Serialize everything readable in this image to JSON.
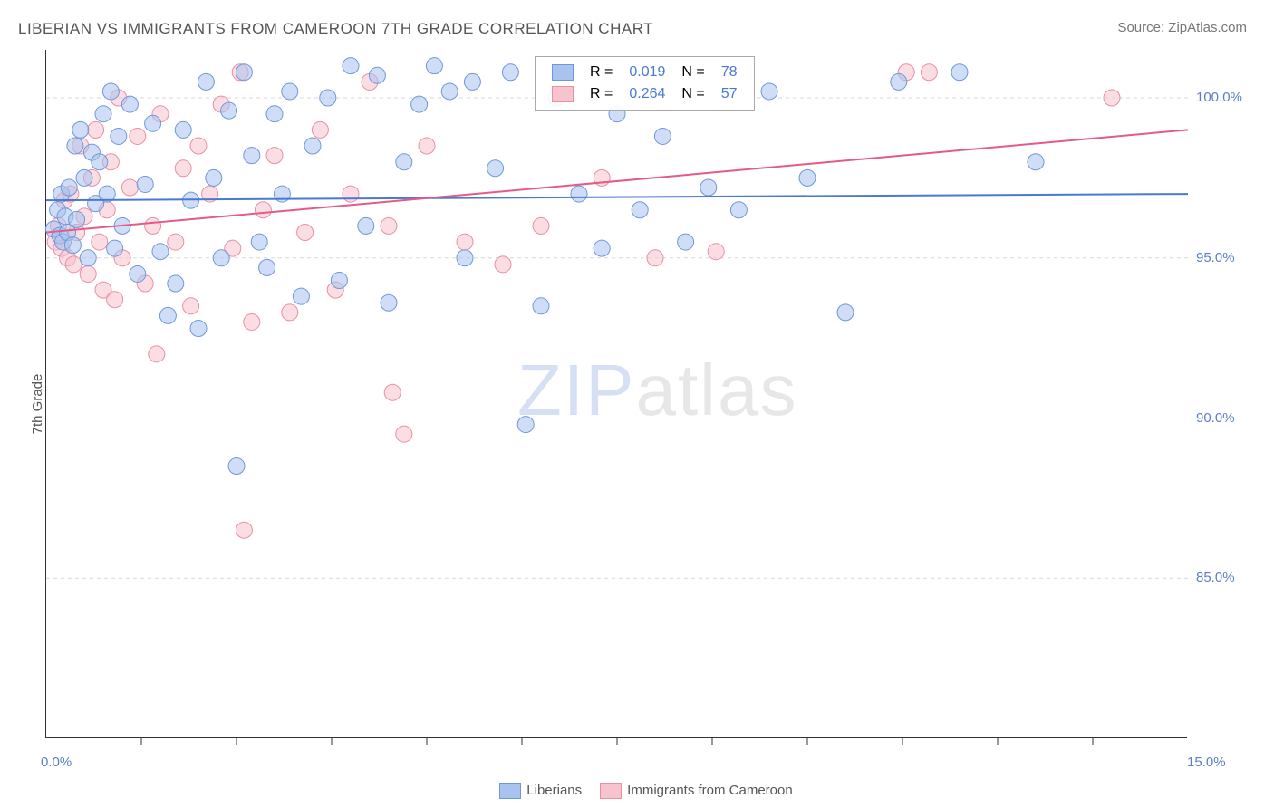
{
  "title": "LIBERIAN VS IMMIGRANTS FROM CAMEROON 7TH GRADE CORRELATION CHART",
  "source_label": "Source: ZipAtlas.com",
  "y_axis_label": "7th Grade",
  "watermark": {
    "part1": "ZIP",
    "part2": "atlas"
  },
  "colors": {
    "series_a_fill": "#a7c3ee",
    "series_a_stroke": "#6f98da",
    "series_b_fill": "#f6c3ce",
    "series_b_stroke": "#e98fa3",
    "trend_a": "#4a79d1",
    "trend_b": "#e55a8a",
    "axis": "#333333",
    "grid": "#d8d8d8",
    "tick_text": "#5b7fc7",
    "title_text": "#555555",
    "stat_value": "#4a79d1",
    "background": "#ffffff"
  },
  "chart": {
    "type": "scatter",
    "xlim": [
      0,
      15
    ],
    "ylim": [
      80,
      101.5
    ],
    "x_ticks": [
      0,
      15
    ],
    "x_minor_ticks": [
      1.25,
      2.5,
      3.75,
      5.0,
      6.25,
      7.5,
      8.75,
      10.0,
      11.25,
      12.5,
      13.75
    ],
    "y_ticks": [
      85,
      90,
      95,
      100
    ],
    "x_tick_labels": [
      "0.0%",
      "15.0%"
    ],
    "y_tick_labels": [
      "85.0%",
      "90.0%",
      "95.0%",
      "100.0%"
    ],
    "marker_radius": 9,
    "marker_opacity": 0.55,
    "trend_width": 2,
    "grid_dash": "4 4"
  },
  "stat_legend": {
    "rows": [
      {
        "swatch": "a",
        "r_label": "R = ",
        "r_value": "0.019",
        "n_label": "N = ",
        "n_value": "78"
      },
      {
        "swatch": "b",
        "r_label": "R = ",
        "r_value": "0.264",
        "n_label": "N = ",
        "n_value": "57"
      }
    ]
  },
  "bottom_legend": {
    "items": [
      {
        "swatch": "a",
        "label": "Liberians"
      },
      {
        "swatch": "b",
        "label": "Immigrants from Cameroon"
      }
    ]
  },
  "trend_lines": {
    "a": {
      "x1": 0,
      "y1": 96.8,
      "x2": 15,
      "y2": 97.0
    },
    "b": {
      "x1": 0,
      "y1": 95.8,
      "x2": 15,
      "y2": 99.0
    }
  },
  "series_a": [
    [
      0.1,
      95.9
    ],
    [
      0.15,
      96.5
    ],
    [
      0.18,
      95.7
    ],
    [
      0.2,
      97.0
    ],
    [
      0.22,
      95.5
    ],
    [
      0.25,
      96.3
    ],
    [
      0.28,
      95.8
    ],
    [
      0.3,
      97.2
    ],
    [
      0.35,
      95.4
    ],
    [
      0.38,
      98.5
    ],
    [
      0.4,
      96.2
    ],
    [
      0.45,
      99.0
    ],
    [
      0.5,
      97.5
    ],
    [
      0.55,
      95.0
    ],
    [
      0.6,
      98.3
    ],
    [
      0.65,
      96.7
    ],
    [
      0.7,
      98.0
    ],
    [
      0.75,
      99.5
    ],
    [
      0.8,
      97.0
    ],
    [
      0.85,
      100.2
    ],
    [
      0.9,
      95.3
    ],
    [
      0.95,
      98.8
    ],
    [
      1.0,
      96.0
    ],
    [
      1.1,
      99.8
    ],
    [
      1.2,
      94.5
    ],
    [
      1.3,
      97.3
    ],
    [
      1.4,
      99.2
    ],
    [
      1.5,
      95.2
    ],
    [
      1.6,
      93.2
    ],
    [
      1.7,
      94.2
    ],
    [
      1.8,
      99.0
    ],
    [
      1.9,
      96.8
    ],
    [
      2.0,
      92.8
    ],
    [
      2.1,
      100.5
    ],
    [
      2.2,
      97.5
    ],
    [
      2.3,
      95.0
    ],
    [
      2.4,
      99.6
    ],
    [
      2.5,
      88.5
    ],
    [
      2.6,
      100.8
    ],
    [
      2.7,
      98.2
    ],
    [
      2.8,
      95.5
    ],
    [
      2.9,
      94.7
    ],
    [
      3.0,
      99.5
    ],
    [
      3.1,
      97.0
    ],
    [
      3.2,
      100.2
    ],
    [
      3.35,
      93.8
    ],
    [
      3.5,
      98.5
    ],
    [
      3.7,
      100.0
    ],
    [
      3.85,
      94.3
    ],
    [
      4.0,
      101.0
    ],
    [
      4.2,
      96.0
    ],
    [
      4.35,
      100.7
    ],
    [
      4.5,
      93.6
    ],
    [
      4.7,
      98.0
    ],
    [
      4.9,
      99.8
    ],
    [
      5.1,
      101.0
    ],
    [
      5.3,
      100.2
    ],
    [
      5.5,
      95.0
    ],
    [
      5.6,
      100.5
    ],
    [
      5.9,
      97.8
    ],
    [
      6.1,
      100.8
    ],
    [
      6.3,
      89.8
    ],
    [
      6.5,
      93.5
    ],
    [
      6.7,
      100.0
    ],
    [
      7.0,
      97.0
    ],
    [
      7.3,
      95.3
    ],
    [
      7.5,
      99.5
    ],
    [
      7.8,
      96.5
    ],
    [
      8.1,
      98.8
    ],
    [
      8.4,
      95.5
    ],
    [
      8.7,
      97.2
    ],
    [
      9.1,
      96.5
    ],
    [
      9.5,
      100.2
    ],
    [
      10.0,
      97.5
    ],
    [
      10.5,
      93.3
    ],
    [
      11.2,
      100.5
    ],
    [
      12.0,
      100.8
    ],
    [
      13.0,
      98.0
    ]
  ],
  "series_b": [
    [
      0.12,
      95.5
    ],
    [
      0.16,
      96.0
    ],
    [
      0.2,
      95.3
    ],
    [
      0.24,
      96.8
    ],
    [
      0.28,
      95.0
    ],
    [
      0.32,
      97.0
    ],
    [
      0.36,
      94.8
    ],
    [
      0.4,
      95.8
    ],
    [
      0.45,
      98.5
    ],
    [
      0.5,
      96.3
    ],
    [
      0.55,
      94.5
    ],
    [
      0.6,
      97.5
    ],
    [
      0.65,
      99.0
    ],
    [
      0.7,
      95.5
    ],
    [
      0.75,
      94.0
    ],
    [
      0.8,
      96.5
    ],
    [
      0.85,
      98.0
    ],
    [
      0.9,
      93.7
    ],
    [
      0.95,
      100.0
    ],
    [
      1.0,
      95.0
    ],
    [
      1.1,
      97.2
    ],
    [
      1.2,
      98.8
    ],
    [
      1.3,
      94.2
    ],
    [
      1.4,
      96.0
    ],
    [
      1.45,
      92.0
    ],
    [
      1.5,
      99.5
    ],
    [
      1.7,
      95.5
    ],
    [
      1.8,
      97.8
    ],
    [
      1.9,
      93.5
    ],
    [
      2.0,
      98.5
    ],
    [
      2.15,
      97.0
    ],
    [
      2.3,
      99.8
    ],
    [
      2.45,
      95.3
    ],
    [
      2.55,
      100.8
    ],
    [
      2.6,
      86.5
    ],
    [
      2.7,
      93.0
    ],
    [
      2.85,
      96.5
    ],
    [
      3.0,
      98.2
    ],
    [
      3.2,
      93.3
    ],
    [
      3.4,
      95.8
    ],
    [
      3.6,
      99.0
    ],
    [
      3.8,
      94.0
    ],
    [
      4.0,
      97.0
    ],
    [
      4.25,
      100.5
    ],
    [
      4.5,
      96.0
    ],
    [
      4.55,
      90.8
    ],
    [
      4.7,
      89.5
    ],
    [
      5.0,
      98.5
    ],
    [
      5.5,
      95.5
    ],
    [
      6.0,
      94.8
    ],
    [
      6.5,
      96.0
    ],
    [
      7.3,
      97.5
    ],
    [
      8.0,
      95.0
    ],
    [
      8.8,
      95.2
    ],
    [
      11.3,
      100.8
    ],
    [
      11.6,
      100.8
    ],
    [
      14.0,
      100.0
    ]
  ]
}
